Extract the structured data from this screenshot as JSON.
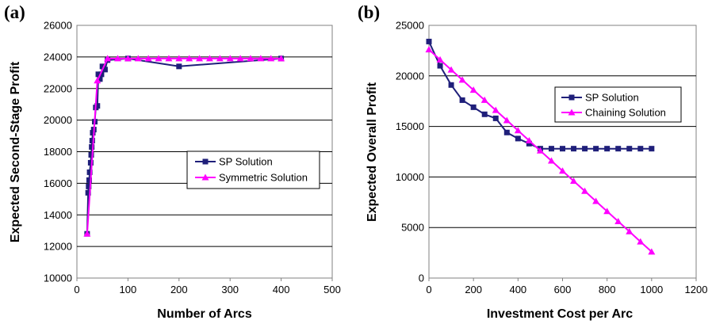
{
  "chart_data": [
    {
      "panel_label": "(a)",
      "type": "line",
      "xlabel": "Number of Arcs",
      "ylabel": "Expected Second-Stage Profit",
      "xlim": [
        0,
        500
      ],
      "ylim": [
        10000,
        26000
      ],
      "xticks": [
        "0",
        "100",
        "200",
        "300",
        "400",
        "500"
      ],
      "yticks": [
        "10000",
        "12000",
        "14000",
        "16000",
        "18000",
        "20000",
        "22000",
        "24000",
        "26000"
      ],
      "grid": "horizontal",
      "legend_position": "right-center",
      "series": [
        {
          "name": "SP Solution",
          "color": "#1f1f7a",
          "marker": "square",
          "points": [
            [
              20,
              12800
            ],
            [
              22,
              15400
            ],
            [
              23,
              15800
            ],
            [
              24,
              16200
            ],
            [
              25,
              16700
            ],
            [
              27,
              17300
            ],
            [
              28,
              17800
            ],
            [
              29,
              18300
            ],
            [
              30,
              18700
            ],
            [
              31,
              19200
            ],
            [
              33,
              19400
            ],
            [
              35,
              19900
            ],
            [
              37,
              20800
            ],
            [
              40,
              20900
            ],
            [
              42,
              22900
            ],
            [
              45,
              22600
            ],
            [
              48,
              22900
            ],
            [
              50,
              23400
            ],
            [
              55,
              23200
            ],
            [
              60,
              23800
            ],
            [
              100,
              23900
            ],
            [
              200,
              23400
            ],
            [
              400,
              23900
            ]
          ]
        },
        {
          "name": "Symmetric Solution",
          "color": "#ff00ff",
          "marker": "triangle",
          "points": [
            [
              20,
              12800
            ],
            [
              40,
              22500
            ],
            [
              60,
              23900
            ],
            [
              80,
              23900
            ],
            [
              100,
              23900
            ],
            [
              120,
              23900
            ],
            [
              140,
              23900
            ],
            [
              160,
              23900
            ],
            [
              180,
              23900
            ],
            [
              200,
              23900
            ],
            [
              220,
              23900
            ],
            [
              240,
              23900
            ],
            [
              260,
              23900
            ],
            [
              280,
              23900
            ],
            [
              300,
              23900
            ],
            [
              320,
              23900
            ],
            [
              340,
              23900
            ],
            [
              360,
              23900
            ],
            [
              380,
              23900
            ],
            [
              400,
              23900
            ]
          ]
        }
      ]
    },
    {
      "panel_label": "(b)",
      "type": "line",
      "xlabel": "Investment Cost per Arc",
      "ylabel": "Expected Overall Profit",
      "xlim": [
        0,
        1200
      ],
      "ylim": [
        0,
        25000
      ],
      "xticks": [
        "0",
        "200",
        "400",
        "600",
        "800",
        "1000",
        "1200"
      ],
      "yticks": [
        "0",
        "5000",
        "10000",
        "15000",
        "20000",
        "25000"
      ],
      "grid": "horizontal",
      "legend_position": "top-right",
      "series": [
        {
          "name": "SP Solution",
          "color": "#1f1f7a",
          "marker": "square",
          "points": [
            [
              0,
              23400
            ],
            [
              50,
              21000
            ],
            [
              100,
              19100
            ],
            [
              150,
              17600
            ],
            [
              200,
              16900
            ],
            [
              250,
              16200
            ],
            [
              300,
              15800
            ],
            [
              350,
              14400
            ],
            [
              400,
              13800
            ],
            [
              450,
              13300
            ],
            [
              500,
              12800
            ],
            [
              550,
              12800
            ],
            [
              600,
              12800
            ],
            [
              650,
              12800
            ],
            [
              700,
              12800
            ],
            [
              750,
              12800
            ],
            [
              800,
              12800
            ],
            [
              850,
              12800
            ],
            [
              900,
              12800
            ],
            [
              950,
              12800
            ],
            [
              1000,
              12800
            ]
          ]
        },
        {
          "name": "Chaining Solution",
          "color": "#ff00ff",
          "marker": "triangle",
          "points": [
            [
              0,
              22600
            ],
            [
              50,
              21600
            ],
            [
              100,
              20600
            ],
            [
              150,
              19600
            ],
            [
              200,
              18600
            ],
            [
              250,
              17600
            ],
            [
              300,
              16600
            ],
            [
              350,
              15600
            ],
            [
              400,
              14600
            ],
            [
              450,
              13600
            ],
            [
              500,
              12600
            ],
            [
              550,
              11600
            ],
            [
              600,
              10600
            ],
            [
              650,
              9600
            ],
            [
              700,
              8600
            ],
            [
              750,
              7600
            ],
            [
              800,
              6600
            ],
            [
              850,
              5600
            ],
            [
              900,
              4600
            ],
            [
              950,
              3600
            ],
            [
              1000,
              2600
            ]
          ]
        }
      ]
    }
  ]
}
